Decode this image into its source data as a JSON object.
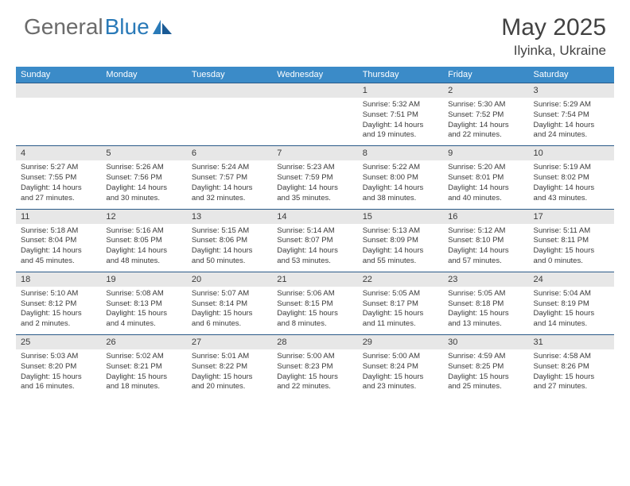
{
  "logo": {
    "text1": "General",
    "text2": "Blue"
  },
  "title": "May 2025",
  "location": "Ilyinka, Ukraine",
  "colors": {
    "header_bg": "#3b8bc8",
    "header_text": "#ffffff",
    "daynum_bg": "#e7e7e7",
    "border": "#2a5a88",
    "text": "#3a3a3a",
    "logo_gray": "#6b6b6b",
    "logo_blue": "#2a7ab8"
  },
  "day_headers": [
    "Sunday",
    "Monday",
    "Tuesday",
    "Wednesday",
    "Thursday",
    "Friday",
    "Saturday"
  ],
  "weeks": [
    [
      {
        "num": "",
        "lines": []
      },
      {
        "num": "",
        "lines": []
      },
      {
        "num": "",
        "lines": []
      },
      {
        "num": "",
        "lines": []
      },
      {
        "num": "1",
        "lines": [
          "Sunrise: 5:32 AM",
          "Sunset: 7:51 PM",
          "Daylight: 14 hours",
          "and 19 minutes."
        ]
      },
      {
        "num": "2",
        "lines": [
          "Sunrise: 5:30 AM",
          "Sunset: 7:52 PM",
          "Daylight: 14 hours",
          "and 22 minutes."
        ]
      },
      {
        "num": "3",
        "lines": [
          "Sunrise: 5:29 AM",
          "Sunset: 7:54 PM",
          "Daylight: 14 hours",
          "and 24 minutes."
        ]
      }
    ],
    [
      {
        "num": "4",
        "lines": [
          "Sunrise: 5:27 AM",
          "Sunset: 7:55 PM",
          "Daylight: 14 hours",
          "and 27 minutes."
        ]
      },
      {
        "num": "5",
        "lines": [
          "Sunrise: 5:26 AM",
          "Sunset: 7:56 PM",
          "Daylight: 14 hours",
          "and 30 minutes."
        ]
      },
      {
        "num": "6",
        "lines": [
          "Sunrise: 5:24 AM",
          "Sunset: 7:57 PM",
          "Daylight: 14 hours",
          "and 32 minutes."
        ]
      },
      {
        "num": "7",
        "lines": [
          "Sunrise: 5:23 AM",
          "Sunset: 7:59 PM",
          "Daylight: 14 hours",
          "and 35 minutes."
        ]
      },
      {
        "num": "8",
        "lines": [
          "Sunrise: 5:22 AM",
          "Sunset: 8:00 PM",
          "Daylight: 14 hours",
          "and 38 minutes."
        ]
      },
      {
        "num": "9",
        "lines": [
          "Sunrise: 5:20 AM",
          "Sunset: 8:01 PM",
          "Daylight: 14 hours",
          "and 40 minutes."
        ]
      },
      {
        "num": "10",
        "lines": [
          "Sunrise: 5:19 AM",
          "Sunset: 8:02 PM",
          "Daylight: 14 hours",
          "and 43 minutes."
        ]
      }
    ],
    [
      {
        "num": "11",
        "lines": [
          "Sunrise: 5:18 AM",
          "Sunset: 8:04 PM",
          "Daylight: 14 hours",
          "and 45 minutes."
        ]
      },
      {
        "num": "12",
        "lines": [
          "Sunrise: 5:16 AM",
          "Sunset: 8:05 PM",
          "Daylight: 14 hours",
          "and 48 minutes."
        ]
      },
      {
        "num": "13",
        "lines": [
          "Sunrise: 5:15 AM",
          "Sunset: 8:06 PM",
          "Daylight: 14 hours",
          "and 50 minutes."
        ]
      },
      {
        "num": "14",
        "lines": [
          "Sunrise: 5:14 AM",
          "Sunset: 8:07 PM",
          "Daylight: 14 hours",
          "and 53 minutes."
        ]
      },
      {
        "num": "15",
        "lines": [
          "Sunrise: 5:13 AM",
          "Sunset: 8:09 PM",
          "Daylight: 14 hours",
          "and 55 minutes."
        ]
      },
      {
        "num": "16",
        "lines": [
          "Sunrise: 5:12 AM",
          "Sunset: 8:10 PM",
          "Daylight: 14 hours",
          "and 57 minutes."
        ]
      },
      {
        "num": "17",
        "lines": [
          "Sunrise: 5:11 AM",
          "Sunset: 8:11 PM",
          "Daylight: 15 hours",
          "and 0 minutes."
        ]
      }
    ],
    [
      {
        "num": "18",
        "lines": [
          "Sunrise: 5:10 AM",
          "Sunset: 8:12 PM",
          "Daylight: 15 hours",
          "and 2 minutes."
        ]
      },
      {
        "num": "19",
        "lines": [
          "Sunrise: 5:08 AM",
          "Sunset: 8:13 PM",
          "Daylight: 15 hours",
          "and 4 minutes."
        ]
      },
      {
        "num": "20",
        "lines": [
          "Sunrise: 5:07 AM",
          "Sunset: 8:14 PM",
          "Daylight: 15 hours",
          "and 6 minutes."
        ]
      },
      {
        "num": "21",
        "lines": [
          "Sunrise: 5:06 AM",
          "Sunset: 8:15 PM",
          "Daylight: 15 hours",
          "and 8 minutes."
        ]
      },
      {
        "num": "22",
        "lines": [
          "Sunrise: 5:05 AM",
          "Sunset: 8:17 PM",
          "Daylight: 15 hours",
          "and 11 minutes."
        ]
      },
      {
        "num": "23",
        "lines": [
          "Sunrise: 5:05 AM",
          "Sunset: 8:18 PM",
          "Daylight: 15 hours",
          "and 13 minutes."
        ]
      },
      {
        "num": "24",
        "lines": [
          "Sunrise: 5:04 AM",
          "Sunset: 8:19 PM",
          "Daylight: 15 hours",
          "and 14 minutes."
        ]
      }
    ],
    [
      {
        "num": "25",
        "lines": [
          "Sunrise: 5:03 AM",
          "Sunset: 8:20 PM",
          "Daylight: 15 hours",
          "and 16 minutes."
        ]
      },
      {
        "num": "26",
        "lines": [
          "Sunrise: 5:02 AM",
          "Sunset: 8:21 PM",
          "Daylight: 15 hours",
          "and 18 minutes."
        ]
      },
      {
        "num": "27",
        "lines": [
          "Sunrise: 5:01 AM",
          "Sunset: 8:22 PM",
          "Daylight: 15 hours",
          "and 20 minutes."
        ]
      },
      {
        "num": "28",
        "lines": [
          "Sunrise: 5:00 AM",
          "Sunset: 8:23 PM",
          "Daylight: 15 hours",
          "and 22 minutes."
        ]
      },
      {
        "num": "29",
        "lines": [
          "Sunrise: 5:00 AM",
          "Sunset: 8:24 PM",
          "Daylight: 15 hours",
          "and 23 minutes."
        ]
      },
      {
        "num": "30",
        "lines": [
          "Sunrise: 4:59 AM",
          "Sunset: 8:25 PM",
          "Daylight: 15 hours",
          "and 25 minutes."
        ]
      },
      {
        "num": "31",
        "lines": [
          "Sunrise: 4:58 AM",
          "Sunset: 8:26 PM",
          "Daylight: 15 hours",
          "and 27 minutes."
        ]
      }
    ]
  ]
}
